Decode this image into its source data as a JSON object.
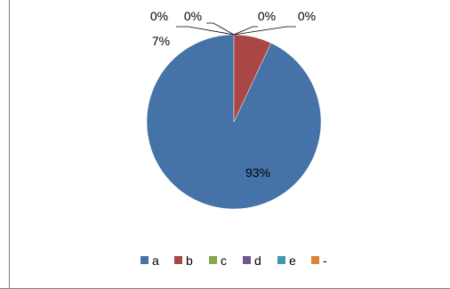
{
  "chart_data": {
    "type": "pie",
    "title": "",
    "categories": [
      "a",
      "b",
      "c",
      "d",
      "e",
      "-"
    ],
    "values": [
      93,
      7,
      0,
      0,
      0,
      0
    ],
    "data_labels": [
      "93%",
      "7%",
      "0%",
      "0%",
      "0%",
      "0%"
    ],
    "colors": [
      "#4572a7",
      "#aa4643",
      "#89a54e",
      "#71588f",
      "#4198af",
      "#db843d"
    ],
    "legend": {
      "position": "bottom",
      "entries": [
        "a",
        "b",
        "c",
        "d",
        "e",
        "-"
      ]
    }
  }
}
